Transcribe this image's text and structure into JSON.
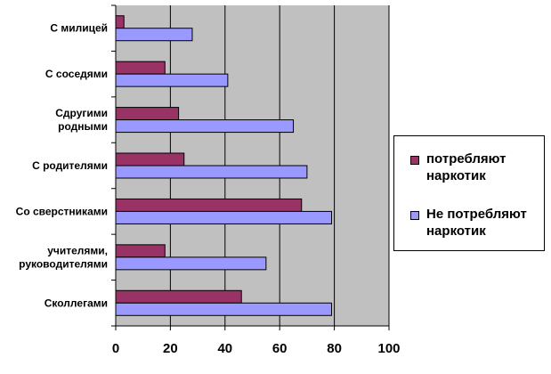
{
  "chart_data": {
    "type": "bar",
    "orientation": "horizontal",
    "categories": [
      "С милицей",
      "С соседями",
      "Сдругими родными",
      "С родителями",
      "Со сверстниками",
      "учителями, руководителями",
      "Сколлегами"
    ],
    "category_lines": [
      [
        "С милицей"
      ],
      [
        "С соседями"
      ],
      [
        "Сдругими",
        "родными"
      ],
      [
        "С родителями"
      ],
      [
        "Со сверстниками"
      ],
      [
        "учителями,",
        "руководителями"
      ],
      [
        "Сколлегами"
      ]
    ],
    "series": [
      {
        "name": "потребляют наркотик",
        "color": "#993366",
        "values": [
          3,
          18,
          23,
          25,
          68,
          18,
          46
        ]
      },
      {
        "name": "Не потребляют наркотик",
        "color": "#9999ff",
        "values": [
          28,
          41,
          65,
          70,
          79,
          55,
          79
        ]
      }
    ],
    "xlim": [
      0,
      100
    ],
    "xticks": [
      0,
      20,
      40,
      60,
      80,
      100
    ],
    "plot_background": "#c0c0c0",
    "grid": true,
    "legend_position": "right",
    "title": "",
    "xlabel": "",
    "ylabel": ""
  },
  "legend": {
    "items": [
      {
        "line1": "потребляют",
        "line2": "наркотик",
        "color": "#993366"
      },
      {
        "line1": "Не потребляют",
        "line2": "наркотик",
        "color": "#9999ff"
      }
    ]
  }
}
